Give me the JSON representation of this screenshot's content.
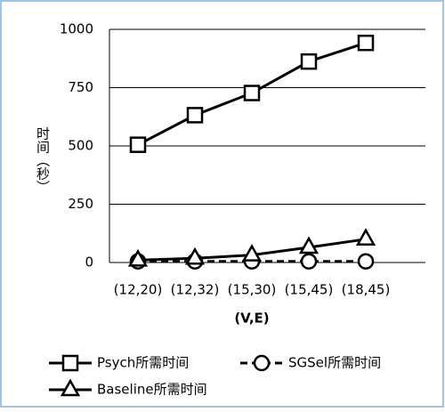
{
  "chart_data": {
    "type": "line",
    "y_label": "时间（秒）",
    "x_label": "(V,E)",
    "categories": [
      "(12,20)",
      "(12,32)",
      "(15,30)",
      "(15,45)",
      "(18,45)"
    ],
    "series": [
      {
        "name": "Psych所需时间",
        "color": "#000000",
        "marker": "square",
        "dash": false,
        "values": [
          505,
          632,
          727,
          862,
          942
        ]
      },
      {
        "name": "SGSel所需时间",
        "color": "#000000",
        "marker": "circle",
        "dash": true,
        "values": [
          5,
          5,
          5,
          5,
          5
        ]
      },
      {
        "name": "Baseline所需时间",
        "color": "#000000",
        "marker": "triangle",
        "dash": false,
        "values": [
          10,
          18,
          32,
          65,
          100
        ]
      }
    ],
    "ylim": [
      0,
      1000
    ],
    "yticks": [
      0,
      250,
      500,
      750,
      1000
    ],
    "grid": true
  }
}
